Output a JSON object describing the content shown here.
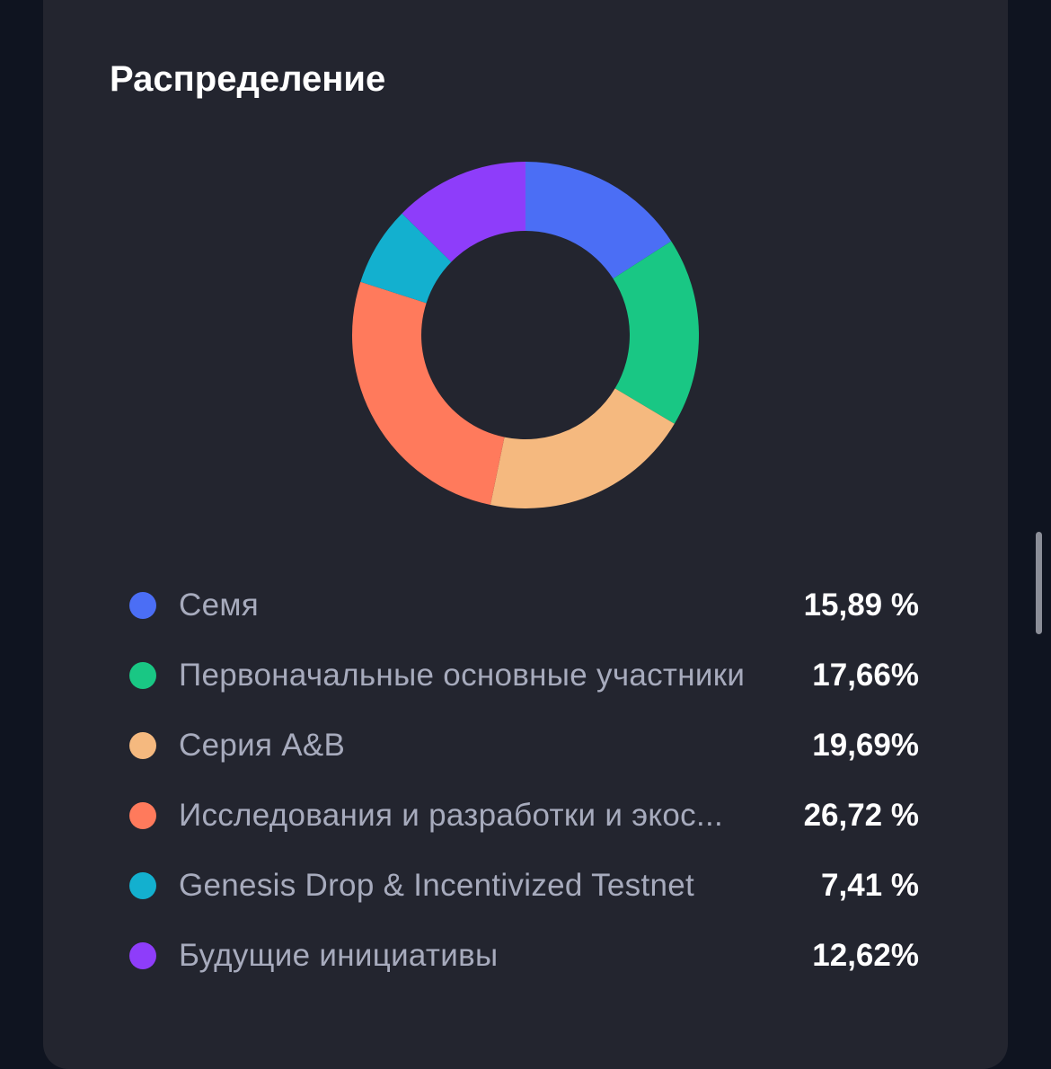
{
  "colors": {
    "background": "#0f1420",
    "card": "#23252f",
    "title": "#ffffff",
    "label": "#a7abbd",
    "value": "#ffffff",
    "scrollbar": "#8b8e98"
  },
  "chart_data": {
    "type": "pie",
    "title": "Распределение",
    "donut": true,
    "legend_position": "bottom",
    "series": [
      {
        "name": "Семя",
        "value": 15.89,
        "value_label": "15,89 %",
        "color": "#4b6ef5"
      },
      {
        "name": "Первоначальные основные участники",
        "value": 17.66,
        "value_label": "17,66%",
        "color": "#19c784"
      },
      {
        "name": "Серия A&B",
        "value": 19.69,
        "value_label": "19,69%",
        "color": "#f5b97f"
      },
      {
        "name": "Исследования и разработки и экос...",
        "value": 26.72,
        "value_label": "26,72 %",
        "color": "#ff7a5c"
      },
      {
        "name": "Genesis Drop & Incentivized Testnet",
        "value": 7.41,
        "value_label": "7,41 %",
        "color": "#13b0cf"
      },
      {
        "name": "Будущие инициативы",
        "value": 12.62,
        "value_label": "12,62%",
        "color": "#8e3dfa"
      }
    ]
  }
}
